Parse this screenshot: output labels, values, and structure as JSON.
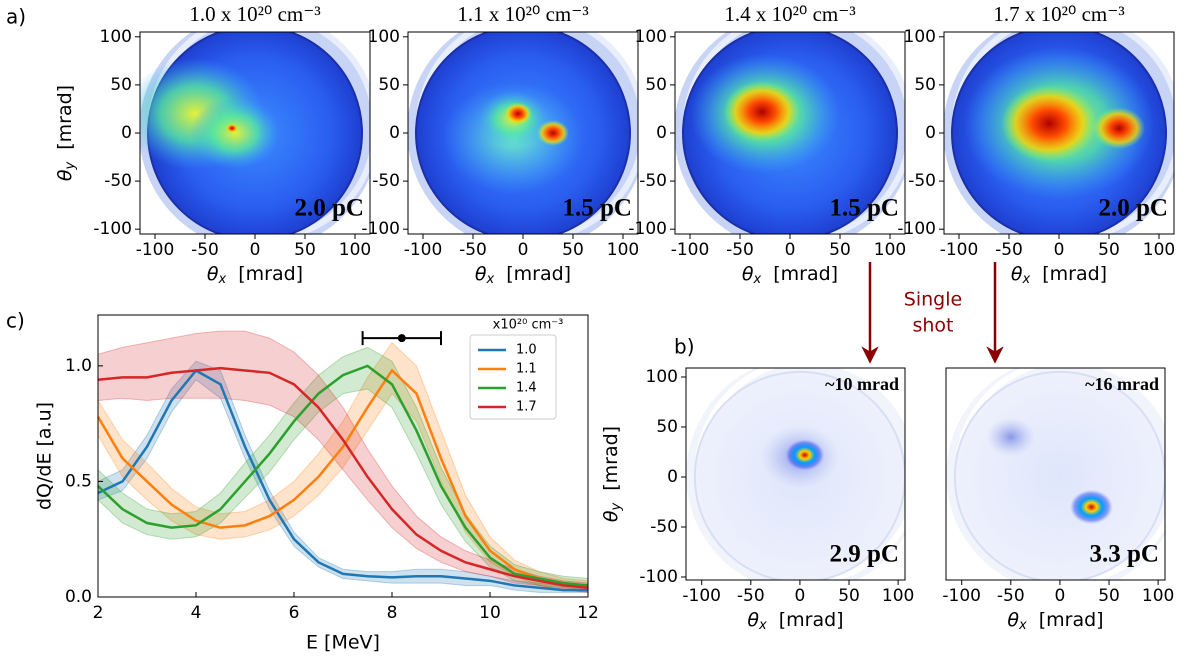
{
  "panel_labels": [
    "a)",
    "c)",
    "b)"
  ],
  "arrow_text": [
    "Single",
    "shot"
  ],
  "chart_data": [
    {
      "type": "image",
      "colormap": "jet",
      "title": "1.0 x 10²⁰ cm⁻³",
      "annotation": "2.0 pC",
      "xlabel": {
        "symbol": "θ",
        "sub": "x",
        "unit": "[mrad]"
      },
      "ylabel": {
        "symbol": "θ",
        "sub": "y",
        "unit": "[mrad]"
      },
      "xlim": [
        -115,
        115
      ],
      "ylim": [
        -105,
        105
      ],
      "xticks": [
        -100,
        -50,
        0,
        50,
        100
      ],
      "yticks": [
        -100,
        -50,
        0,
        50,
        100
      ]
    },
    {
      "type": "image",
      "colormap": "jet",
      "title": "1.1 x 10²⁰ cm⁻³",
      "annotation": "1.5 pC",
      "xlabel": {
        "symbol": "θ",
        "sub": "x",
        "unit": "[mrad]"
      },
      "xlim": [
        -115,
        115
      ],
      "ylim": [
        -105,
        105
      ],
      "xticks": [
        -100,
        -50,
        0,
        50,
        100
      ],
      "yticks": [
        -100,
        -50,
        0,
        50,
        100
      ]
    },
    {
      "type": "image",
      "colormap": "jet",
      "title": "1.4 x 10²⁰ cm⁻³",
      "annotation": "1.5 pC",
      "xlabel": {
        "symbol": "θ",
        "sub": "x",
        "unit": "[mrad]"
      },
      "xlim": [
        -115,
        115
      ],
      "ylim": [
        -105,
        105
      ],
      "xticks": [
        -100,
        -50,
        0,
        50,
        100
      ],
      "yticks": [
        -100,
        -50,
        0,
        50,
        100
      ]
    },
    {
      "type": "image",
      "colormap": "jet",
      "title": "1.7 x 10²⁰ cm⁻³",
      "annotation": "2.0 pC",
      "xlabel": {
        "symbol": "θ",
        "sub": "x",
        "unit": "[mrad]"
      },
      "xlim": [
        -115,
        115
      ],
      "ylim": [
        -105,
        105
      ],
      "xticks": [
        -100,
        -50,
        0,
        50,
        100
      ],
      "yticks": [
        -100,
        -50,
        0,
        50,
        100
      ]
    },
    {
      "type": "line",
      "xlabel": "E  [MeV]",
      "ylabel": "dQ/dE  [a.u]",
      "legend_title": "x10²⁰ cm⁻³",
      "legend": "upper right",
      "xlim": [
        2,
        12
      ],
      "ylim": [
        0,
        1.22
      ],
      "xticks": [
        2,
        4,
        6,
        8,
        10,
        12
      ],
      "yticks": [
        {
          "value": 0,
          "label": "0.0"
        },
        {
          "value": 0.5,
          "label": "0.5"
        },
        {
          "value": 1,
          "label": "1.0"
        }
      ],
      "x": [
        2,
        2.5,
        3,
        3.5,
        4,
        4.5,
        5,
        5.5,
        6,
        6.5,
        7,
        7.5,
        8,
        8.5,
        9,
        9.5,
        10,
        10.5,
        11,
        11.5,
        12
      ],
      "errorbar": {
        "x": 8.2,
        "y": 1.12,
        "xerr": 0.8
      },
      "series": [
        {
          "name": "1.0",
          "color": "#1f77b4",
          "values": [
            0.45,
            0.5,
            0.65,
            0.85,
            0.98,
            0.92,
            0.65,
            0.42,
            0.25,
            0.15,
            0.1,
            0.09,
            0.085,
            0.09,
            0.09,
            0.08,
            0.07,
            0.05,
            0.04,
            0.03,
            0.03
          ],
          "lower": [
            0.42,
            0.46,
            0.6,
            0.8,
            0.94,
            0.86,
            0.6,
            0.38,
            0.22,
            0.13,
            0.08,
            0.07,
            0.06,
            0.06,
            0.06,
            0.05,
            0.05,
            0.03,
            0.02,
            0.02,
            0.02
          ],
          "upper": [
            0.5,
            0.55,
            0.7,
            0.9,
            1.02,
            0.98,
            0.7,
            0.46,
            0.28,
            0.17,
            0.12,
            0.11,
            0.11,
            0.12,
            0.12,
            0.11,
            0.09,
            0.07,
            0.06,
            0.05,
            0.05
          ]
        },
        {
          "name": "1.1",
          "color": "#ff7f0e",
          "values": [
            0.78,
            0.6,
            0.5,
            0.4,
            0.33,
            0.3,
            0.31,
            0.35,
            0.42,
            0.52,
            0.65,
            0.82,
            0.98,
            0.88,
            0.6,
            0.35,
            0.2,
            0.12,
            0.08,
            0.05,
            0.04
          ],
          "lower": [
            0.7,
            0.52,
            0.42,
            0.33,
            0.27,
            0.25,
            0.26,
            0.29,
            0.35,
            0.44,
            0.56,
            0.72,
            0.88,
            0.76,
            0.5,
            0.28,
            0.15,
            0.09,
            0.05,
            0.03,
            0.02
          ],
          "upper": [
            0.85,
            0.68,
            0.58,
            0.47,
            0.39,
            0.36,
            0.37,
            0.42,
            0.5,
            0.62,
            0.76,
            0.95,
            1.1,
            1.0,
            0.72,
            0.44,
            0.26,
            0.16,
            0.11,
            0.08,
            0.07
          ]
        },
        {
          "name": "1.4",
          "color": "#2ca02c",
          "values": [
            0.48,
            0.38,
            0.32,
            0.3,
            0.31,
            0.38,
            0.5,
            0.62,
            0.76,
            0.88,
            0.96,
            1.0,
            0.92,
            0.72,
            0.48,
            0.3,
            0.17,
            0.1,
            0.08,
            0.06,
            0.05
          ],
          "lower": [
            0.42,
            0.32,
            0.27,
            0.25,
            0.26,
            0.32,
            0.43,
            0.54,
            0.68,
            0.8,
            0.88,
            0.9,
            0.82,
            0.62,
            0.4,
            0.24,
            0.13,
            0.07,
            0.05,
            0.04,
            0.03
          ],
          "upper": [
            0.55,
            0.45,
            0.38,
            0.36,
            0.37,
            0.45,
            0.58,
            0.7,
            0.84,
            0.96,
            1.04,
            1.08,
            1.02,
            0.82,
            0.56,
            0.36,
            0.22,
            0.14,
            0.11,
            0.09,
            0.08
          ]
        },
        {
          "name": "1.7",
          "color": "#d62728",
          "values": [
            0.94,
            0.95,
            0.95,
            0.97,
            0.98,
            0.99,
            0.98,
            0.97,
            0.92,
            0.82,
            0.68,
            0.52,
            0.38,
            0.27,
            0.2,
            0.15,
            0.12,
            0.09,
            0.07,
            0.05,
            0.04
          ],
          "lower": [
            0.85,
            0.86,
            0.85,
            0.86,
            0.86,
            0.86,
            0.85,
            0.83,
            0.78,
            0.68,
            0.55,
            0.42,
            0.3,
            0.21,
            0.15,
            0.11,
            0.09,
            0.06,
            0.05,
            0.03,
            0.02
          ],
          "upper": [
            1.05,
            1.08,
            1.1,
            1.12,
            1.14,
            1.15,
            1.15,
            1.12,
            1.06,
            0.96,
            0.82,
            0.64,
            0.48,
            0.35,
            0.26,
            0.2,
            0.16,
            0.12,
            0.09,
            0.07,
            0.06
          ]
        }
      ]
    },
    {
      "type": "image",
      "colormap": "blues",
      "annotation": "2.9 pC",
      "corner_annotation": "~10 mrad",
      "xlabel": {
        "symbol": "θ",
        "sub": "x",
        "unit": "[mrad]"
      },
      "ylabel": {
        "symbol": "θ",
        "sub": "y",
        "unit": "[mrad]"
      },
      "xlim": [
        -116,
        107
      ],
      "ylim": [
        -103,
        109
      ],
      "xticks": [
        -100,
        -50,
        0,
        50,
        100
      ],
      "yticks": [
        -100,
        -50,
        0,
        50,
        100
      ]
    },
    {
      "type": "image",
      "colormap": "blues",
      "annotation": "3.3 pC",
      "corner_annotation": "~16 mrad",
      "xlabel": {
        "symbol": "θ",
        "sub": "x",
        "unit": "[mrad]"
      },
      "xlim": [
        -116,
        107
      ],
      "ylim": [
        -103,
        109
      ],
      "xticks": [
        -100,
        -50,
        0,
        50,
        100
      ],
      "yticks": []
    }
  ]
}
